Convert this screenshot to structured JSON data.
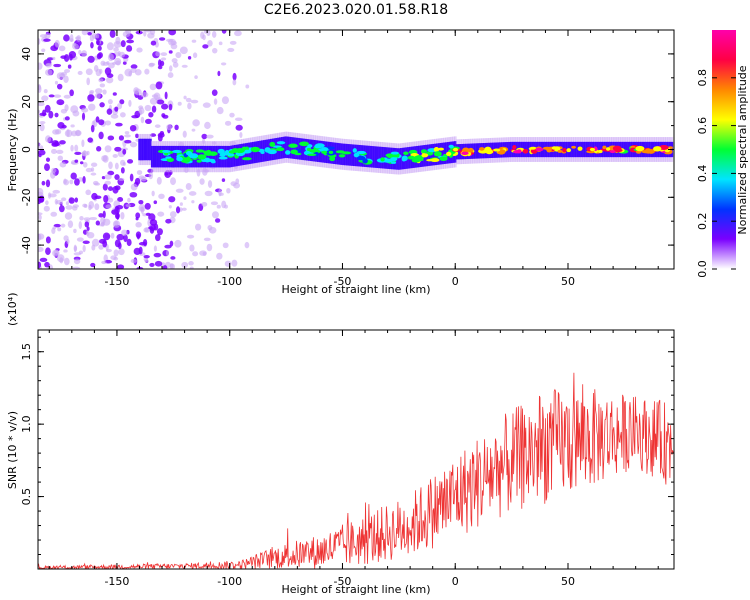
{
  "title": "C2E6.2023.020.01.58.R18",
  "chart_data": [
    {
      "type": "heatmap",
      "xlabel": "Height of straight line (km)",
      "ylabel": "Frequency (Hz)",
      "xlim": [
        -185,
        97
      ],
      "ylim": [
        -50,
        50
      ],
      "xticks": [
        "-150",
        "-100",
        "-50",
        "0",
        "50"
      ],
      "yticks": [
        "-40",
        "-20",
        "0",
        "20",
        "40"
      ],
      "colorbar": {
        "label": "Normalized spectral amplitude",
        "range": [
          0.0,
          1.0
        ],
        "ticks": [
          "0.0",
          "0.2",
          "0.4",
          "0.6",
          "0.8"
        ],
        "colors": [
          "#ffffff",
          "#7a00ff",
          "#0033ff",
          "#00e5ff",
          "#00ff33",
          "#ffff00",
          "#ff8800",
          "#ff0044",
          "#ff00aa"
        ]
      },
      "features": {
        "noise_region_x": [
          -185,
          -92
        ],
        "signal_band_center_hz": [
          {
            "x": -135,
            "f": -3
          },
          {
            "x": -100,
            "f": -3
          },
          {
            "x": -75,
            "f": 1
          },
          {
            "x": -50,
            "f": -2
          },
          {
            "x": -25,
            "f": -4
          },
          {
            "x": 0,
            "f": -1
          },
          {
            "x": 25,
            "f": 0
          },
          {
            "x": 50,
            "f": 0
          },
          {
            "x": 95,
            "f": 0
          }
        ]
      }
    },
    {
      "type": "line",
      "xlabel": "Height of straight line (km)",
      "ylabel": "SNR (10 * v/v)",
      "scale_label": "(x10⁴)",
      "xlim": [
        -185,
        97
      ],
      "ylim": [
        0,
        1.65
      ],
      "xticks": [
        "-150",
        "-100",
        "-50",
        "0",
        "50"
      ],
      "yticks": [
        "0.5",
        "1.0",
        "1.5"
      ],
      "series": [
        {
          "color": "#ee3333",
          "envelope": [
            {
              "x": -185,
              "mean": 0.01,
              "amp": 0.01
            },
            {
              "x": -120,
              "mean": 0.02,
              "amp": 0.02
            },
            {
              "x": -95,
              "mean": 0.03,
              "amp": 0.03
            },
            {
              "x": -80,
              "mean": 0.08,
              "amp": 0.08
            },
            {
              "x": -60,
              "mean": 0.12,
              "amp": 0.12
            },
            {
              "x": -40,
              "mean": 0.2,
              "amp": 0.18
            },
            {
              "x": -20,
              "mean": 0.3,
              "amp": 0.22
            },
            {
              "x": 0,
              "mean": 0.5,
              "amp": 0.3
            },
            {
              "x": 20,
              "mean": 0.7,
              "amp": 0.35
            },
            {
              "x": 40,
              "mean": 0.85,
              "amp": 0.4
            },
            {
              "x": 60,
              "mean": 0.9,
              "amp": 0.35
            },
            {
              "x": 80,
              "mean": 0.95,
              "amp": 0.25
            },
            {
              "x": 97,
              "mean": 0.85,
              "amp": 0.3
            }
          ]
        }
      ]
    }
  ]
}
